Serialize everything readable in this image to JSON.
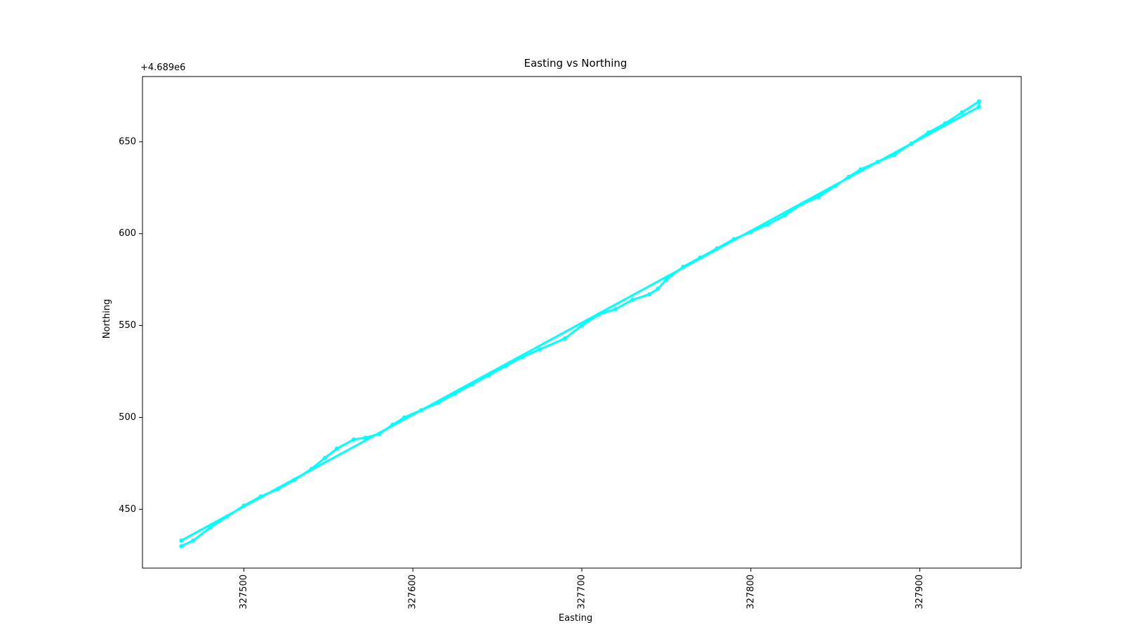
{
  "chart_data": {
    "type": "line",
    "title": "Easting vs Northing",
    "x_label": "Easting",
    "y_label": "Northing",
    "y_offset_label": "+4.689e6",
    "xlim": [
      327440,
      327960
    ],
    "ylim": [
      418,
      685.5
    ],
    "xticks": [
      327500,
      327600,
      327700,
      327800,
      327900
    ],
    "yticks": [
      450,
      500,
      550,
      600,
      650
    ],
    "grid": false,
    "series": [
      {
        "color": "#00ffff",
        "x": [
          327463,
          327470,
          327480,
          327490,
          327500,
          327510,
          327520,
          327530,
          327540,
          327548,
          327555,
          327565,
          327572,
          327580,
          327588,
          327595,
          327605,
          327615,
          327625,
          327635,
          327645,
          327655,
          327665,
          327675,
          327690,
          327700,
          327710,
          327720,
          327730,
          327740,
          327745,
          327750,
          327760,
          327770,
          327780,
          327790,
          327800,
          327810,
          327820,
          327830,
          327840,
          327850,
          327858,
          327865,
          327875,
          327885,
          327895,
          327905,
          327915,
          327925,
          327935,
          327935,
          327463
        ],
        "y": [
          430,
          433,
          440,
          446,
          452,
          457,
          461,
          466,
          472,
          478,
          483,
          488,
          489,
          491,
          496,
          500,
          504,
          508,
          513,
          518,
          523,
          528,
          533,
          537,
          543,
          550,
          556,
          559,
          564,
          567,
          570,
          575,
          582,
          587,
          592,
          597,
          601,
          605,
          610,
          616,
          620,
          626,
          631,
          635,
          639,
          643,
          649,
          655,
          660,
          666,
          672,
          669,
          433
        ]
      }
    ]
  }
}
